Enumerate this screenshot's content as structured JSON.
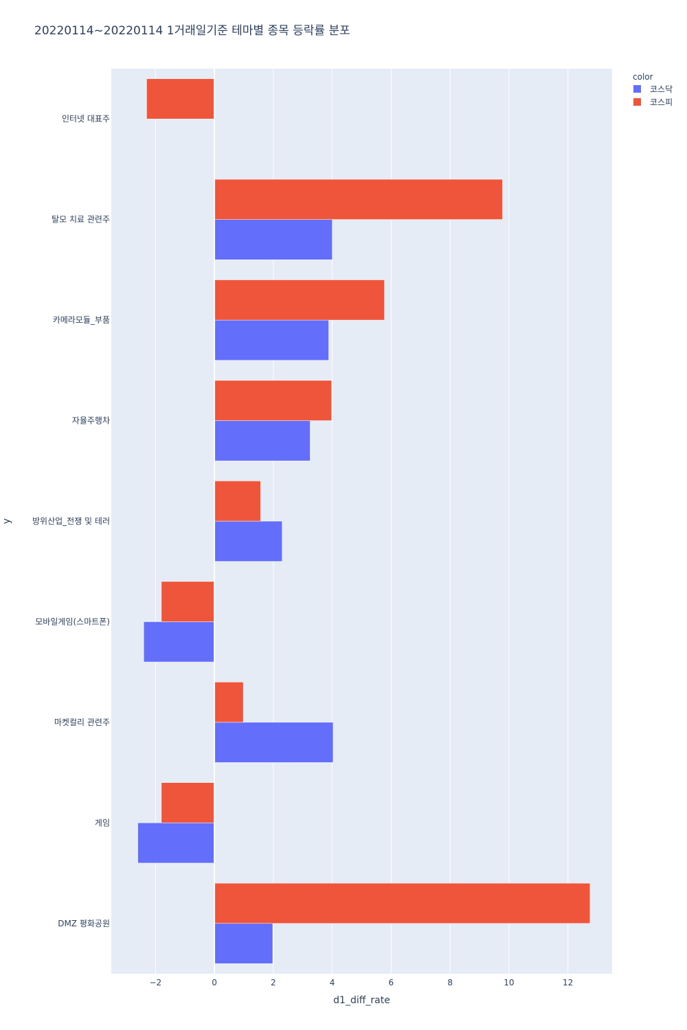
{
  "chart_data": {
    "type": "bar",
    "orientation": "horizontal",
    "barmode": "group",
    "title": "20220114~20220114 1거래일기준 테마별 종목 등락률 분포",
    "xlabel": "d1_diff_rate",
    "ylabel": "y",
    "xlim": [
      -3.5,
      13.5
    ],
    "xticks": [
      -2,
      0,
      2,
      4,
      6,
      8,
      10,
      12
    ],
    "xtick_labels": [
      "−2",
      "0",
      "2",
      "4",
      "6",
      "8",
      "10",
      "12"
    ],
    "grid": true,
    "legend": {
      "title": "color",
      "placement": "top-right"
    },
    "categories": [
      "인터넷 대표주",
      "탈모 치료 관련주",
      "카메라모듈_부품",
      "자율주행차",
      "방위산업_전쟁 및 테러",
      "모바일게임(스마트폰)",
      "마켓컬리 관련주",
      "게임",
      "DMZ 평화공원"
    ],
    "series": [
      {
        "name": "코스닥",
        "color": "#636efa",
        "values": [
          null,
          4.0,
          3.88,
          3.25,
          2.3,
          -2.4,
          4.03,
          -2.6,
          1.98
        ]
      },
      {
        "name": "코스피",
        "color": "#ef553b",
        "values": [
          -2.3,
          9.78,
          5.77,
          3.98,
          1.57,
          -1.8,
          0.98,
          -1.8,
          12.75
        ]
      }
    ]
  }
}
